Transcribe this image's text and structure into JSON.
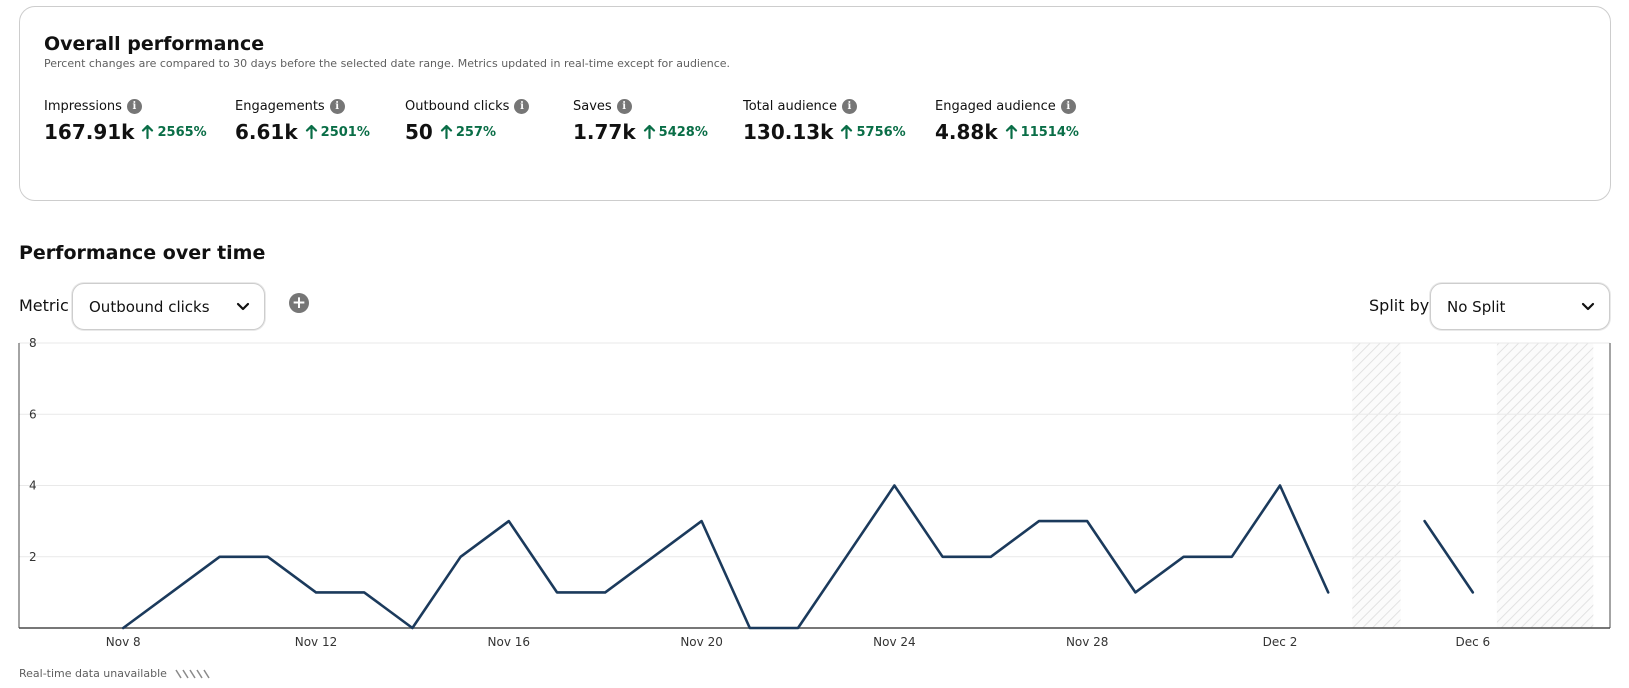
{
  "overall": {
    "title": "Overall performance",
    "subtitle": "Percent changes are compared to 30 days before the selected date range. Metrics updated in real-time except for audience."
  },
  "metrics": [
    {
      "label": "Impressions",
      "value": "167.91k",
      "change": "2565%"
    },
    {
      "label": "Engagements",
      "value": "6.61k",
      "change": "2501%"
    },
    {
      "label": "Outbound clicks",
      "value": "50",
      "change": "257%"
    },
    {
      "label": "Saves",
      "value": "1.77k",
      "change": "5428%"
    },
    {
      "label": "Total audience",
      "value": "130.13k",
      "change": "5756%"
    },
    {
      "label": "Engaged audience",
      "value": "4.88k",
      "change": "11514%"
    }
  ],
  "over_time": {
    "title": "Performance over time",
    "metric_label": "Metric",
    "metric_selected": "Outbound clicks",
    "split_label": "Split by",
    "split_selected": "No Split"
  },
  "footer": {
    "note": "Real-time data unavailable"
  },
  "colors": {
    "line": "#1b3a5c",
    "positive": "#0a6e47",
    "grid": "#e9e9e9",
    "hatch": "#d6d6d6"
  },
  "chart_data": {
    "type": "line",
    "x_type": "date",
    "x": [
      "Nov 7",
      "Nov 8",
      "Nov 9",
      "Nov 10",
      "Nov 11",
      "Nov 12",
      "Nov 13",
      "Nov 14",
      "Nov 15",
      "Nov 16",
      "Nov 17",
      "Nov 18",
      "Nov 19",
      "Nov 20",
      "Nov 21",
      "Nov 22",
      "Nov 23",
      "Nov 24",
      "Nov 25",
      "Nov 26",
      "Nov 27",
      "Nov 28",
      "Nov 29",
      "Nov 30",
      "Dec 1",
      "Dec 2",
      "Dec 3",
      "Dec 4",
      "Dec 5",
      "Dec 6",
      "Dec 7",
      "Dec 8"
    ],
    "series": [
      {
        "values": [
          null,
          0,
          1,
          2,
          2,
          1,
          1,
          0,
          2,
          3,
          1,
          1,
          2,
          3,
          0,
          0,
          2,
          4,
          2,
          2,
          3,
          3,
          1,
          2,
          2,
          4,
          1,
          null,
          3,
          1,
          null,
          null
        ]
      }
    ],
    "x_tick_labels": [
      "Nov 8",
      "Nov 12",
      "Nov 16",
      "Nov 20",
      "Nov 24",
      "Nov 28",
      "Dec 2",
      "Dec 6"
    ],
    "y_ticks": [
      2,
      4,
      6,
      8
    ],
    "ylim": [
      0,
      8
    ],
    "grid": true,
    "unavailable_ranges": [
      [
        "Dec 4",
        "Dec 4"
      ],
      [
        "Dec 7",
        "Dec 8"
      ]
    ]
  }
}
